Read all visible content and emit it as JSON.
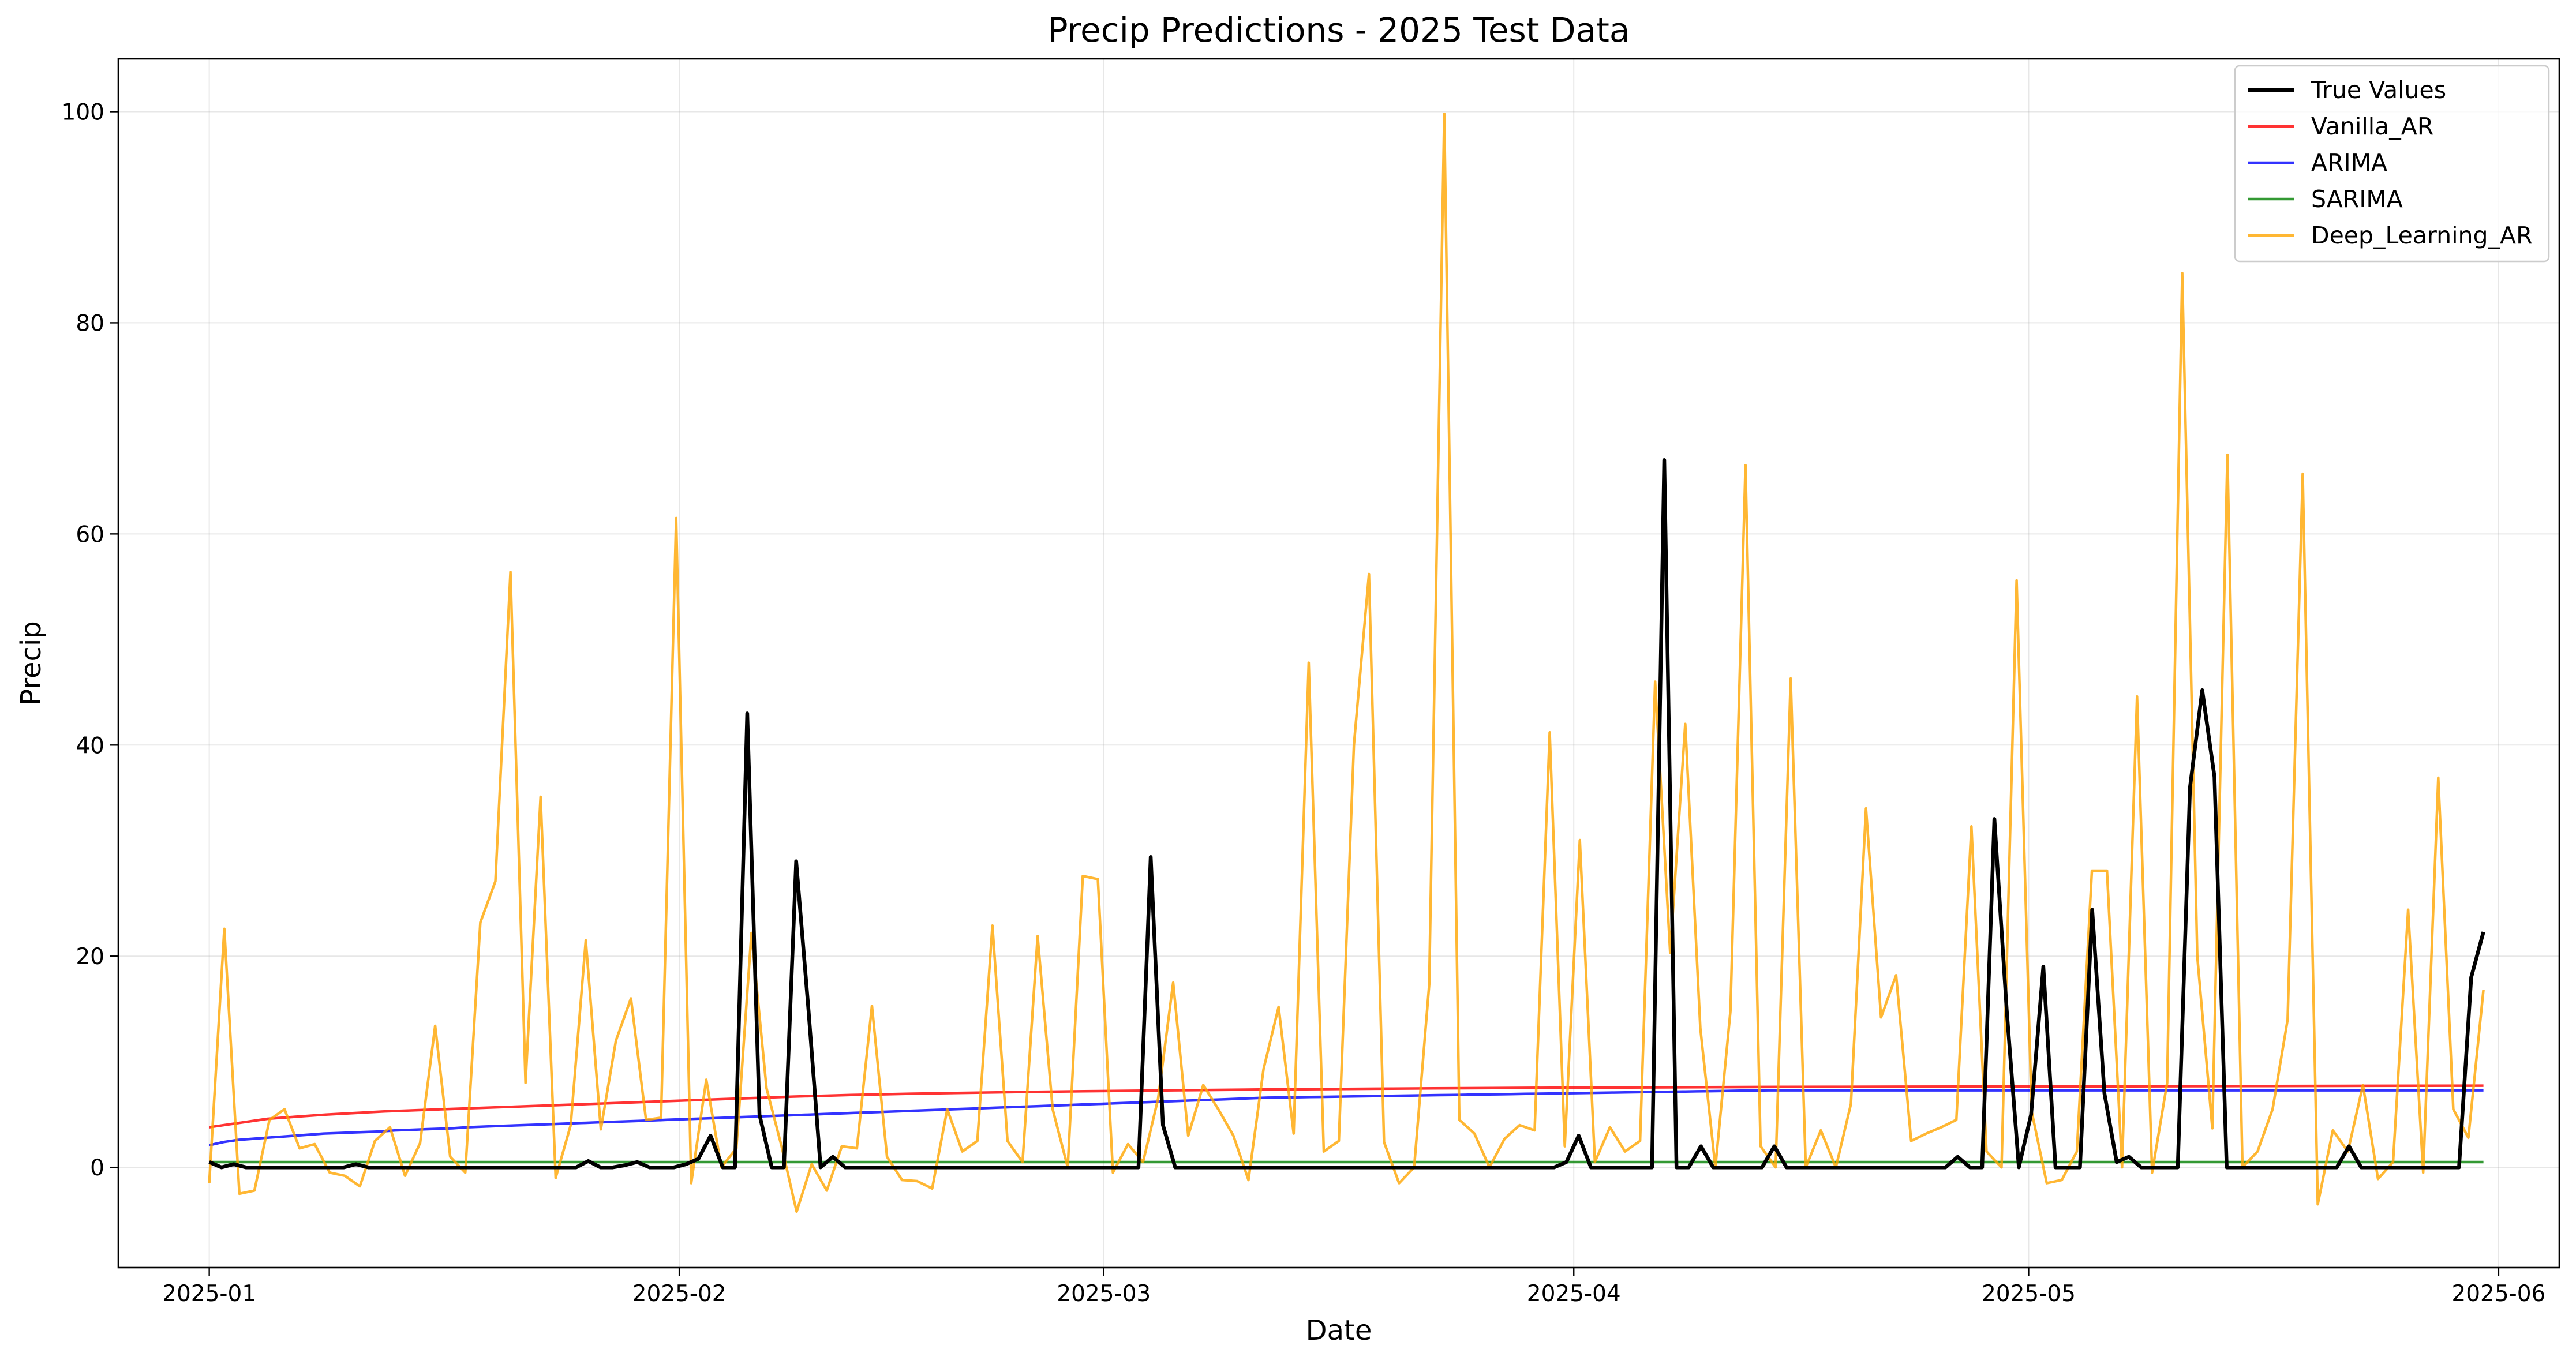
{
  "chart_data": {
    "type": "line",
    "title": "Precip Predictions - 2025 Test Data",
    "xlabel": "Date",
    "ylabel": "Precip",
    "x_start": "2025-01-01",
    "x_end": "2025-05-31",
    "xlim": [
      "2024-12-26",
      "2025-06-05"
    ],
    "ylim": [
      -9.5,
      105
    ],
    "yticks": [
      0,
      20,
      40,
      60,
      80,
      100
    ],
    "xticks": [
      {
        "date": "2025-01-01",
        "label": "2025-01"
      },
      {
        "date": "2025-02-01",
        "label": "2025-02"
      },
      {
        "date": "2025-03-01",
        "label": "2025-03"
      },
      {
        "date": "2025-04-01",
        "label": "2025-04"
      },
      {
        "date": "2025-05-01",
        "label": "2025-05"
      },
      {
        "date": "2025-06-01",
        "label": "2025-06"
      }
    ],
    "grid": true,
    "legend_position": "top-right",
    "series": [
      {
        "name": "True Values",
        "color": "#000000",
        "values": [
          0.5,
          0,
          0.3,
          0,
          0,
          0,
          0,
          0,
          0,
          0,
          0,
          0,
          0.3,
          0,
          0,
          0,
          0,
          0,
          0,
          0,
          0,
          0,
          0,
          0,
          0,
          0,
          0,
          0,
          0,
          0,
          0,
          0.6,
          0,
          0,
          0.2,
          0.5,
          0,
          0,
          0,
          0.3,
          0.8,
          3,
          0,
          0,
          43,
          5,
          0,
          0,
          29,
          15,
          0,
          1,
          0,
          0,
          0,
          0,
          0,
          0,
          0,
          0,
          0,
          0,
          0,
          0,
          0,
          0,
          0,
          0,
          0,
          0,
          0,
          0,
          0,
          0,
          0,
          0,
          0,
          29.4,
          4,
          0,
          0,
          0,
          0,
          0,
          0,
          0,
          0,
          0,
          0,
          0,
          0,
          0,
          0,
          0,
          0,
          0,
          0,
          0,
          0,
          0,
          0,
          0,
          0,
          0,
          0,
          0,
          0,
          0,
          0,
          0,
          0,
          0.5,
          3,
          0,
          0,
          0,
          0,
          0,
          0,
          67,
          0,
          0,
          2,
          0,
          0,
          0,
          0,
          0,
          2,
          0,
          0,
          0,
          0,
          0,
          0,
          0,
          0,
          0,
          0,
          0,
          0,
          0,
          0,
          1,
          0,
          0,
          33,
          15,
          0,
          5,
          19,
          0,
          0,
          0,
          24.4,
          7,
          0.5,
          1,
          0,
          0,
          0,
          0,
          36,
          45.2,
          37,
          0,
          0,
          0,
          0,
          0,
          0,
          0,
          0,
          0,
          0,
          2,
          0,
          0,
          0,
          0,
          0,
          0,
          0,
          0,
          0,
          18,
          22.3
        ]
      },
      {
        "name": "Vanilla_AR",
        "color": "#ff0000",
        "values": [
          3.8,
          4.6,
          5.0,
          5.3,
          5.5,
          5.7,
          5.9,
          6.1,
          6.3,
          6.5,
          6.7,
          6.85,
          6.97,
          7.06,
          7.14,
          7.21,
          7.27,
          7.32,
          7.37,
          7.41,
          7.45,
          7.48,
          7.51,
          7.54,
          7.56,
          7.58,
          7.6,
          7.62,
          7.63,
          7.64,
          7.65,
          7.66,
          7.67,
          7.68,
          7.69,
          7.7,
          7.71,
          7.72,
          7.73,
          7.74
        ]
      },
      {
        "name": "ARIMA",
        "color": "#0000ff",
        "values": [
          2.1,
          2.4,
          2.6,
          2.7,
          2.8,
          2.9,
          3.0,
          3.1,
          3.2,
          3.25,
          3.3,
          3.35,
          3.4,
          3.5,
          3.55,
          3.6,
          3.65,
          3.7,
          3.8,
          3.85,
          3.9,
          3.95,
          4.0,
          4.05,
          4.1,
          4.15,
          4.2,
          4.25,
          4.3,
          4.35,
          4.4,
          4.45,
          4.5,
          4.55,
          4.6,
          4.65,
          4.7,
          4.75,
          4.8,
          4.85,
          4.9,
          4.95,
          5.0,
          5.05,
          5.1,
          5.15,
          5.2,
          5.25,
          5.3,
          5.35,
          5.4,
          5.45,
          5.5,
          5.55,
          5.6,
          5.65,
          5.7,
          5.75,
          5.8,
          5.85,
          5.9,
          5.95,
          6.0,
          6.05,
          6.1,
          6.15,
          6.2,
          6.25,
          6.3,
          6.35,
          6.4,
          6.45,
          6.5,
          6.55,
          6.6,
          6.62,
          6.64,
          6.66,
          6.68,
          6.7,
          6.72,
          6.74,
          6.76,
          6.78,
          6.8,
          6.82,
          6.84,
          6.86,
          6.88,
          6.9,
          6.92,
          6.94,
          6.96,
          6.98,
          7.0,
          7.02,
          7.04,
          7.06,
          7.08,
          7.1,
          7.12,
          7.14,
          7.16,
          7.18,
          7.2,
          7.22,
          7.24,
          7.26,
          7.28,
          7.3,
          7.3,
          7.3,
          7.3,
          7.3,
          7.3,
          7.3,
          7.3,
          7.3,
          7.3,
          7.3,
          7.3,
          7.3,
          7.3,
          7.3,
          7.3,
          7.3,
          7.3,
          7.3,
          7.3,
          7.3,
          7.3,
          7.3,
          7.3,
          7.3,
          7.3,
          7.3,
          7.3,
          7.3,
          7.3,
          7.3,
          7.3,
          7.3,
          7.3,
          7.3,
          7.3,
          7.3,
          7.3,
          7.3,
          7.3,
          7.3,
          7.3,
          7.3,
          7.3,
          7.3,
          7.3,
          7.3,
          7.3,
          7.3,
          7.3,
          7.3
        ]
      },
      {
        "name": "SARIMA",
        "color": "#008000",
        "values": [
          0.5,
          0.5
        ]
      },
      {
        "name": "Deep_Learning_AR",
        "color": "#ffa500",
        "values": [
          -1.5,
          22.6,
          -2.5,
          -2.2,
          4.5,
          5.5,
          1.8,
          2.2,
          -0.5,
          -0.8,
          -1.8,
          2.5,
          3.8,
          -0.8,
          2.3,
          13.4,
          1,
          -0.5,
          23.2,
          27.1,
          56.4,
          8,
          35.1,
          -1,
          4,
          21.5,
          3.6,
          12,
          16,
          4.5,
          4.7,
          61.5,
          -1.5,
          8.3,
          0,
          1.8,
          22.2,
          7.5,
          2,
          -4.2,
          0.3,
          -2.2,
          2,
          1.8,
          15.3,
          1,
          -1.2,
          -1.3,
          -2,
          5.5,
          1.5,
          2.5,
          22.9,
          2.5,
          0.5,
          21.9,
          5.5,
          0,
          27.6,
          27.3,
          -0.5,
          2.2,
          0.5,
          6.5,
          17.5,
          3,
          7.8,
          5.5,
          3,
          -1.2,
          9.3,
          15.2,
          3.2,
          47.8,
          1.5,
          2.5,
          40,
          56.2,
          2.4,
          -1.5,
          0,
          17.3,
          99.8,
          4.5,
          3.2,
          0,
          2.7,
          4,
          3.5,
          41.2,
          2,
          31,
          0.5,
          3.8,
          1.5,
          2.5,
          46,
          20.3,
          42,
          13.2,
          0,
          14.8,
          66.5,
          2,
          0,
          46.3,
          0,
          3.5,
          0,
          6,
          34,
          14.2,
          18.2,
          2.5,
          3.2,
          3.8,
          4.5,
          32.3,
          1.5,
          0,
          55.6,
          5.3,
          -1.5,
          -1.2,
          1.5,
          28.1,
          28.1,
          0,
          44.6,
          -0.5,
          8,
          84.7,
          20,
          3.7,
          67.5,
          0,
          1.5,
          5.5,
          14,
          65.7,
          -3.5,
          3.5,
          1.5,
          7.8,
          -1.1,
          0.5,
          24.4,
          -0.5,
          36.9,
          5.5,
          2.8,
          16.8
        ]
      }
    ]
  }
}
